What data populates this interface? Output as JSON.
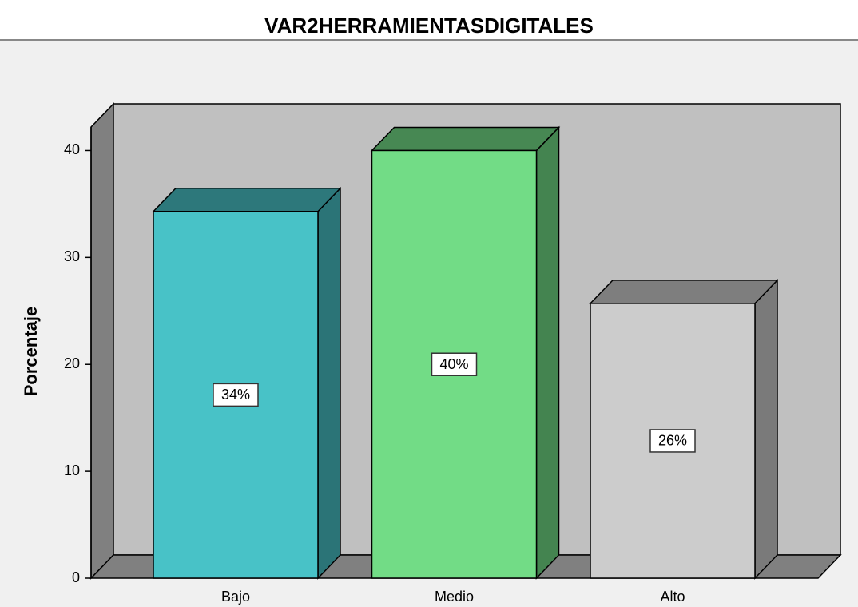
{
  "chart_data": {
    "type": "bar3d",
    "title": "VAR2HERRAMIENTASDIGITALES",
    "y_label": "Porcentaje",
    "categories": [
      "Bajo",
      "Medio",
      "Alto"
    ],
    "values": [
      34.3,
      40.0,
      25.7
    ],
    "value_labels": [
      "34%",
      "40%",
      "26%"
    ],
    "colors": [
      "#48c2c7",
      "#72dc86",
      "#cccccc"
    ],
    "ylim": [
      0,
      42.2
    ],
    "yticks": [
      0,
      10,
      20,
      30,
      40
    ]
  }
}
